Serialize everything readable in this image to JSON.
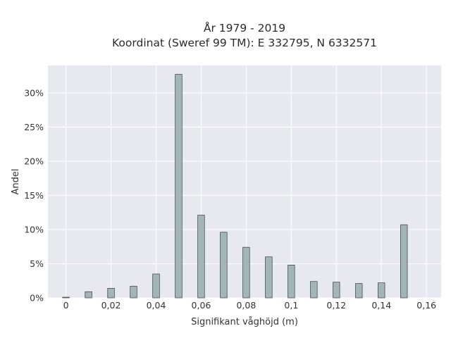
{
  "chart_data": {
    "type": "bar",
    "title": "År 1979 - 2019",
    "subtitle": "Koordinat (Sweref 99 TM): E 332795, N 6332571",
    "xlabel": "Signifikant våghöjd (m)",
    "ylabel": "Andel",
    "x": [
      0,
      0.01,
      0.02,
      0.03,
      0.04,
      0.05,
      0.06,
      0.07,
      0.08,
      0.09,
      0.1,
      0.11,
      0.12,
      0.13,
      0.14,
      0.15
    ],
    "values": [
      0.1,
      0.9,
      1.4,
      1.7,
      3.5,
      32.7,
      12.1,
      9.6,
      7.4,
      6.0,
      4.8,
      2.4,
      2.3,
      2.1,
      2.2,
      10.7
    ],
    "xlim": [
      -0.008,
      0.1665
    ],
    "ylim": [
      0,
      34
    ],
    "xticks": [
      0,
      0.02,
      0.04,
      0.06,
      0.08,
      0.1,
      0.12,
      0.14,
      0.16
    ],
    "xtick_labels": [
      "0",
      "0,02",
      "0,04",
      "0,06",
      "0,08",
      "0,1",
      "0,12",
      "0,14",
      "0,16"
    ],
    "yticks": [
      0,
      5,
      10,
      15,
      20,
      25,
      30
    ],
    "ytick_labels": [
      "0%",
      "5%",
      "10%",
      "15%",
      "20%",
      "25%",
      "30%"
    ],
    "bar_width": 0.003,
    "grid": true,
    "colors": {
      "bar_fill": "#a2b6b8",
      "bar_stroke": "#3a3a3a",
      "plot_bg": "#e8e8f0",
      "grid": "#ffffff"
    }
  }
}
